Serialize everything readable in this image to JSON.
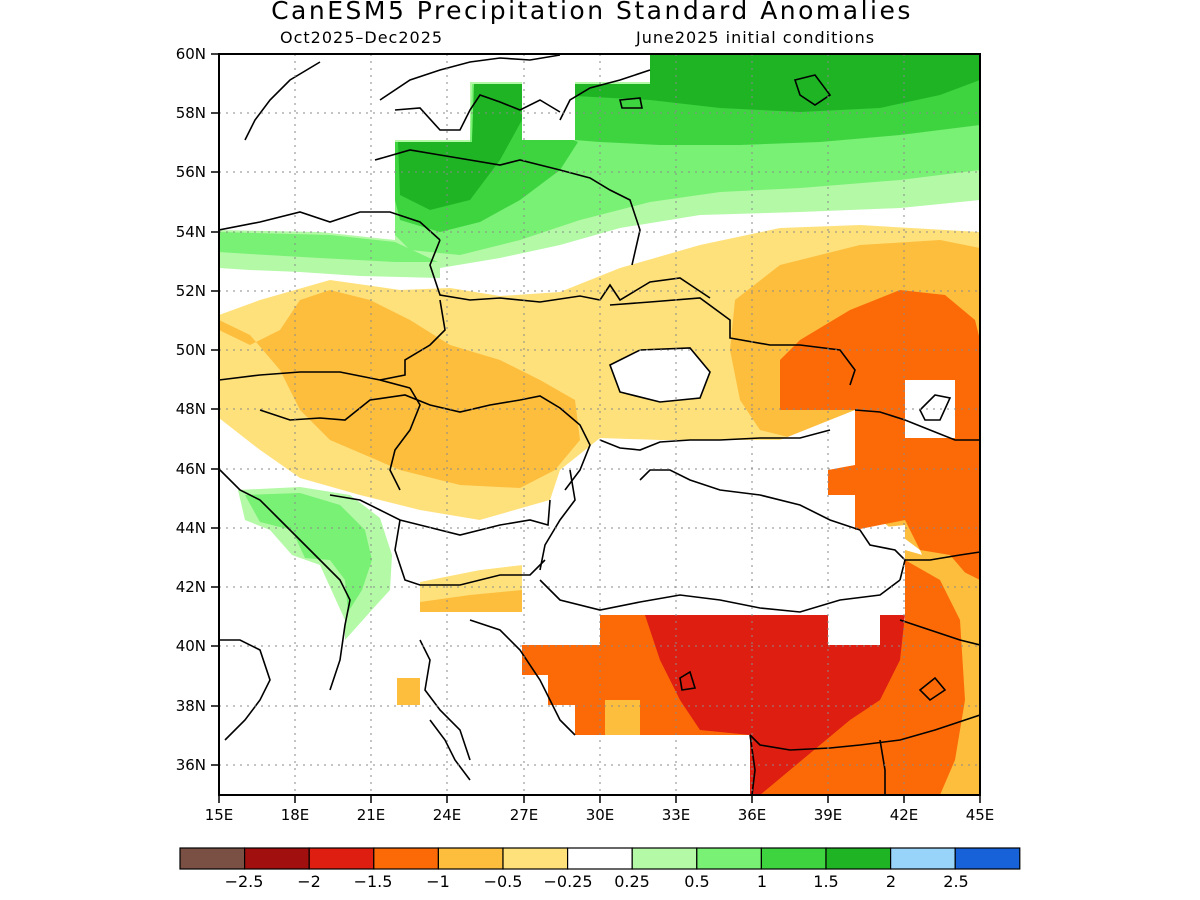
{
  "title": "CanESM5 Precipitation Standard Anomalies",
  "period": "Oct2025–Dec2025",
  "initial_conditions": "June2025 initial conditions",
  "axes": {
    "lat_labels": [
      "60N",
      "58N",
      "56N",
      "54N",
      "52N",
      "50N",
      "48N",
      "46N",
      "44N",
      "42N",
      "40N",
      "38N",
      "36N"
    ],
    "lon_labels": [
      "15E",
      "18E",
      "21E",
      "24E",
      "27E",
      "30E",
      "33E",
      "36E",
      "39E",
      "42E",
      "45E"
    ],
    "lat_range": [
      35,
      60
    ],
    "lon_range": [
      15,
      45
    ]
  },
  "colorbar": {
    "labels": [
      "−2.5",
      "−2",
      "−1.5",
      "−1",
      "−0.5",
      "−0.25",
      "0.25",
      "0.5",
      "1",
      "1.5",
      "2",
      "2.5"
    ],
    "colors": [
      "#7a5044",
      "#a10f0f",
      "#dd1e10",
      "#fc6a08",
      "#fdbd3d",
      "#ffe17b",
      "#ffffff",
      "#b3f9a6",
      "#78f174",
      "#3ed440",
      "#1eb424",
      "#98d3fa",
      "#1762d8"
    ]
  },
  "map_layers": {
    "grid": "dotted",
    "overlay": "coastlines-and-country-borders"
  }
}
